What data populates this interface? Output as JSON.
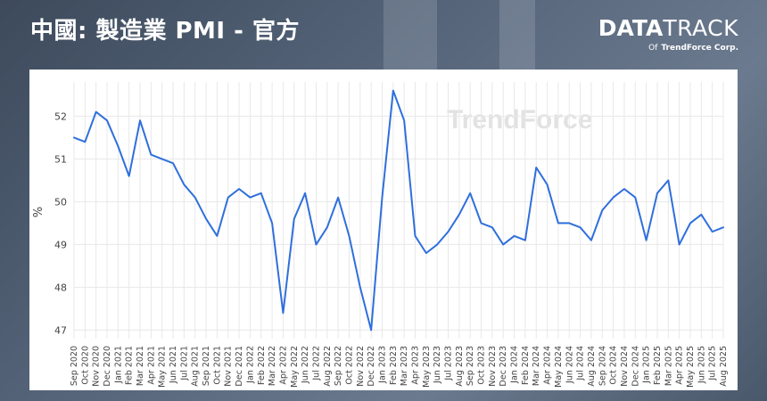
{
  "header": {
    "title": "中國: 製造業 PMI - 官方"
  },
  "brand": {
    "name_bold": "DATA",
    "name_light": "TRACK",
    "sub_prefix": "Of",
    "sub_company": "TrendForce Corp."
  },
  "watermark": {
    "text": "TrendForce"
  },
  "colors": {
    "line": "#2f6fdc",
    "grid": "#e8e8e8",
    "axis_text": "#444444",
    "watermark": "#cccccc"
  },
  "chart_data": {
    "type": "line",
    "title": "",
    "xlabel": "",
    "ylabel": "%",
    "ylim": [
      46.8,
      52.8
    ],
    "yticks": [
      47,
      48,
      49,
      50,
      51,
      52
    ],
    "grid": true,
    "categories": [
      "Sep 2020",
      "Oct 2020",
      "Nov 2020",
      "Dec 2020",
      "Jan 2021",
      "Feb 2021",
      "Mar 2021",
      "Apr 2021",
      "May 2021",
      "Jun 2021",
      "Jul 2021",
      "Aug 2021",
      "Sep 2021",
      "Oct 2021",
      "Nov 2021",
      "Dec 2021",
      "Jan 2022",
      "Feb 2022",
      "Mar 2022",
      "Apr 2022",
      "May 2022",
      "Jun 2022",
      "Jul 2022",
      "Aug 2022",
      "Sep 2022",
      "Oct 2022",
      "Nov 2022",
      "Dec 2022",
      "Jan 2023",
      "Feb 2023",
      "Mar 2023",
      "Apr 2023",
      "May 2023",
      "Jun 2023",
      "Jul 2023",
      "Aug 2023",
      "Sep 2023",
      "Oct 2023",
      "Nov 2023",
      "Dec 2023",
      "Jan 2024",
      "Feb 2024",
      "Mar 2024",
      "Apr 2024",
      "May 2024",
      "Jun 2024",
      "Jul 2024",
      "Aug 2024",
      "Sep 2024",
      "Oct 2024",
      "Nov 2024",
      "Dec 2024",
      "Jan 2025",
      "Feb 2025",
      "Mar 2025",
      "Apr 2025",
      "May 2025",
      "Jun 2025",
      "Jul 2025",
      "Aug 2025"
    ],
    "values": [
      51.5,
      51.4,
      52.1,
      51.9,
      51.3,
      50.6,
      51.9,
      51.1,
      51.0,
      50.9,
      50.4,
      50.1,
      49.6,
      49.2,
      50.1,
      50.3,
      50.1,
      50.2,
      49.5,
      47.4,
      49.6,
      50.2,
      49.0,
      49.4,
      50.1,
      49.2,
      48.0,
      47.0,
      50.1,
      52.6,
      51.9,
      49.2,
      48.8,
      49.0,
      49.3,
      49.7,
      50.2,
      49.5,
      49.4,
      49.0,
      49.2,
      49.1,
      50.8,
      50.4,
      49.5,
      49.5,
      49.4,
      49.1,
      49.8,
      50.1,
      50.3,
      50.1,
      49.1,
      50.2,
      50.5,
      49.0,
      49.5,
      49.7,
      49.3,
      49.4
    ]
  }
}
